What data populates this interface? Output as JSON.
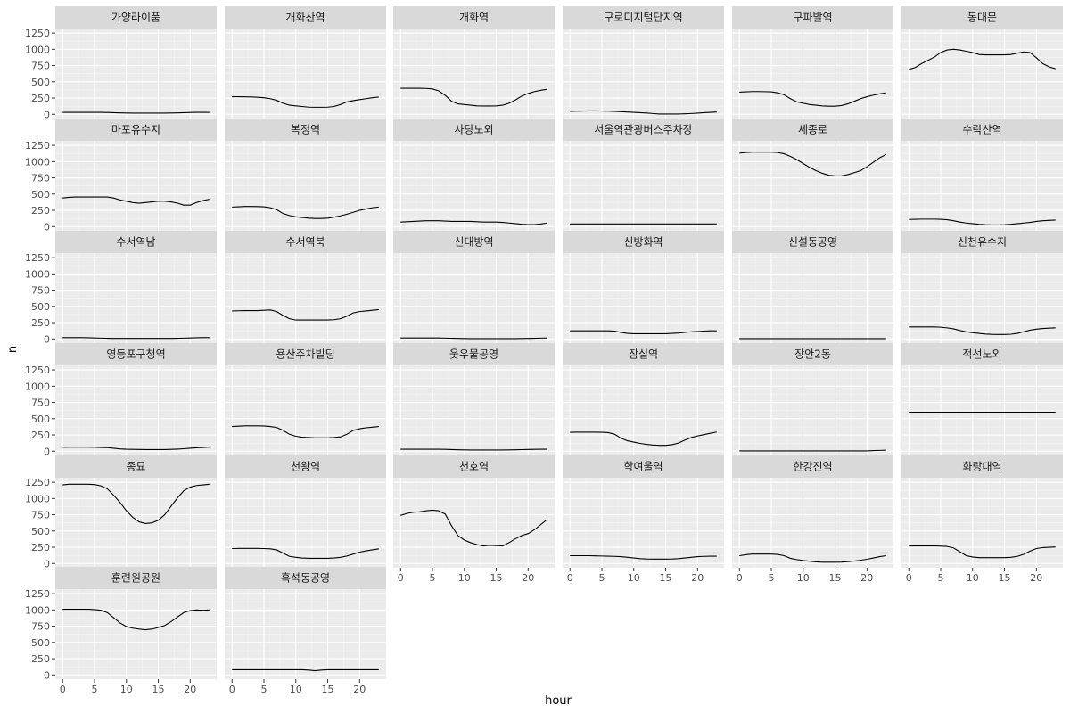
{
  "chart_data": {
    "type": "line",
    "layout": "facet_wrap",
    "ncol": 6,
    "xlabel": "hour",
    "ylabel": "n",
    "xlim": [
      -1.15,
      24.15
    ],
    "ylim": [
      -65,
      1320
    ],
    "xticks": [
      0,
      5,
      10,
      15,
      20
    ],
    "yticks": [
      0,
      250,
      500,
      750,
      1000,
      1250
    ],
    "x": [
      0,
      1,
      2,
      3,
      4,
      5,
      6,
      7,
      8,
      9,
      10,
      11,
      12,
      13,
      14,
      15,
      16,
      17,
      18,
      19,
      20,
      21,
      22,
      23
    ],
    "grid": true,
    "legend": "none",
    "colors": {
      "panel_bg": "#ebebeb",
      "strip_bg": "#d9d9d9",
      "grid_major": "#ffffff",
      "grid_minor": "#f5f5f5",
      "line": "#000000"
    },
    "series": [
      {
        "name": "가양라이품",
        "values": [
          30,
          30,
          30,
          30,
          30,
          30,
          30,
          28,
          25,
          22,
          20,
          18,
          18,
          18,
          18,
          18,
          18,
          20,
          22,
          25,
          28,
          30,
          30,
          30
        ]
      },
      {
        "name": "개화산역",
        "values": [
          270,
          270,
          268,
          266,
          262,
          255,
          240,
          215,
          170,
          140,
          130,
          120,
          110,
          108,
          108,
          110,
          120,
          150,
          190,
          210,
          225,
          240,
          255,
          265
        ]
      },
      {
        "name": "개화역",
        "values": [
          400,
          400,
          400,
          400,
          398,
          390,
          360,
          290,
          200,
          160,
          150,
          140,
          130,
          128,
          128,
          130,
          140,
          170,
          220,
          280,
          320,
          350,
          370,
          385
        ]
      },
      {
        "name": "구로디지털단지역",
        "values": [
          45,
          48,
          50,
          52,
          52,
          50,
          48,
          45,
          40,
          35,
          30,
          25,
          20,
          12,
          5,
          5,
          5,
          5,
          8,
          12,
          18,
          25,
          30,
          35
        ]
      },
      {
        "name": "구파발역",
        "values": [
          340,
          345,
          350,
          350,
          348,
          345,
          330,
          300,
          240,
          190,
          170,
          150,
          140,
          130,
          125,
          125,
          135,
          160,
          200,
          240,
          270,
          295,
          315,
          330
        ]
      },
      {
        "name": "동대문",
        "values": [
          690,
          720,
          780,
          830,
          880,
          950,
          990,
          1000,
          990,
          970,
          950,
          920,
          915,
          915,
          915,
          915,
          920,
          940,
          960,
          950,
          870,
          780,
          730,
          700
        ]
      },
      {
        "name": "마포유수지",
        "values": [
          440,
          450,
          455,
          455,
          455,
          455,
          455,
          455,
          440,
          410,
          390,
          370,
          360,
          370,
          380,
          390,
          390,
          380,
          360,
          330,
          330,
          370,
          400,
          420
        ]
      },
      {
        "name": "복정역",
        "values": [
          300,
          305,
          310,
          310,
          308,
          305,
          290,
          260,
          200,
          170,
          150,
          140,
          130,
          125,
          125,
          130,
          145,
          165,
          190,
          220,
          250,
          270,
          290,
          300
        ]
      },
      {
        "name": "사당노외",
        "values": [
          70,
          75,
          80,
          85,
          90,
          90,
          90,
          85,
          80,
          80,
          80,
          80,
          75,
          70,
          70,
          70,
          65,
          55,
          45,
          35,
          30,
          30,
          40,
          55
        ]
      },
      {
        "name": "서울역관광버스주차장",
        "values": [
          40,
          40,
          40,
          40,
          40,
          40,
          40,
          40,
          40,
          40,
          40,
          40,
          40,
          40,
          40,
          40,
          40,
          40,
          40,
          40,
          40,
          40,
          40,
          40
        ]
      },
      {
        "name": "세종로",
        "values": [
          1130,
          1140,
          1145,
          1145,
          1145,
          1145,
          1140,
          1120,
          1080,
          1030,
          970,
          910,
          860,
          820,
          790,
          780,
          780,
          800,
          830,
          860,
          920,
          990,
          1060,
          1110
        ]
      },
      {
        "name": "수락산역",
        "values": [
          110,
          112,
          115,
          115,
          115,
          112,
          105,
          90,
          70,
          55,
          45,
          35,
          28,
          25,
          25,
          28,
          35,
          45,
          55,
          65,
          80,
          90,
          95,
          100
        ]
      },
      {
        "name": "수서역남",
        "values": [
          20,
          20,
          20,
          20,
          18,
          15,
          12,
          10,
          8,
          8,
          8,
          8,
          8,
          8,
          8,
          8,
          8,
          8,
          10,
          12,
          15,
          18,
          20,
          20
        ]
      },
      {
        "name": "수서역북",
        "values": [
          430,
          432,
          435,
          435,
          435,
          440,
          445,
          420,
          360,
          310,
          290,
          290,
          290,
          290,
          290,
          290,
          295,
          310,
          350,
          400,
          420,
          430,
          440,
          450
        ]
      },
      {
        "name": "신대방역",
        "values": [
          15,
          15,
          15,
          15,
          15,
          15,
          15,
          12,
          10,
          8,
          6,
          5,
          5,
          5,
          5,
          5,
          5,
          5,
          5,
          6,
          8,
          10,
          12,
          15
        ]
      },
      {
        "name": "신방화역",
        "values": [
          125,
          125,
          125,
          125,
          125,
          125,
          125,
          120,
          100,
          85,
          80,
          80,
          80,
          80,
          80,
          80,
          85,
          90,
          100,
          110,
          115,
          120,
          125,
          125
        ]
      },
      {
        "name": "신설동공영",
        "values": [
          5,
          5,
          5,
          5,
          5,
          5,
          5,
          5,
          5,
          5,
          5,
          5,
          5,
          5,
          5,
          5,
          5,
          5,
          5,
          5,
          5,
          5,
          5,
          5
        ]
      },
      {
        "name": "신천유수지",
        "values": [
          185,
          185,
          185,
          185,
          185,
          180,
          170,
          155,
          130,
          110,
          95,
          85,
          75,
          70,
          68,
          68,
          72,
          85,
          110,
          135,
          150,
          160,
          165,
          170
        ]
      },
      {
        "name": "영등포구청역",
        "values": [
          60,
          62,
          62,
          62,
          62,
          60,
          58,
          55,
          45,
          35,
          30,
          28,
          26,
          25,
          25,
          25,
          25,
          28,
          32,
          38,
          45,
          52,
          58,
          62
        ]
      },
      {
        "name": "용산주차빌딩",
        "values": [
          380,
          385,
          390,
          390,
          390,
          388,
          380,
          365,
          320,
          260,
          230,
          215,
          210,
          205,
          205,
          205,
          210,
          220,
          260,
          320,
          345,
          360,
          370,
          380
        ]
      },
      {
        "name": "웃우물공영",
        "values": [
          30,
          30,
          30,
          30,
          30,
          30,
          30,
          28,
          25,
          22,
          20,
          18,
          18,
          18,
          18,
          18,
          18,
          20,
          22,
          24,
          26,
          28,
          30,
          30
        ]
      },
      {
        "name": "잠실역",
        "values": [
          290,
          292,
          292,
          292,
          292,
          290,
          285,
          260,
          200,
          160,
          140,
          120,
          105,
          95,
          90,
          90,
          100,
          125,
          170,
          210,
          235,
          255,
          275,
          295
        ]
      },
      {
        "name": "장안2동",
        "values": [
          5,
          5,
          5,
          5,
          5,
          5,
          5,
          5,
          5,
          5,
          5,
          5,
          5,
          5,
          5,
          5,
          5,
          5,
          5,
          5,
          5,
          10,
          12,
          15
        ]
      },
      {
        "name": "적선노외",
        "values": [
          600,
          600,
          600,
          600,
          600,
          600,
          600,
          600,
          600,
          600,
          600,
          600,
          600,
          600,
          600,
          600,
          600,
          600,
          600,
          600,
          600,
          600,
          600,
          600
        ]
      },
      {
        "name": "종묘",
        "values": [
          1210,
          1220,
          1220,
          1220,
          1220,
          1215,
          1195,
          1150,
          1050,
          940,
          810,
          710,
          640,
          615,
          625,
          665,
          750,
          880,
          1010,
          1120,
          1175,
          1200,
          1210,
          1220
        ]
      },
      {
        "name": "천왕역",
        "values": [
          230,
          232,
          232,
          232,
          232,
          230,
          225,
          210,
          160,
          110,
          95,
          85,
          80,
          80,
          80,
          80,
          85,
          95,
          115,
          145,
          175,
          195,
          210,
          225
        ]
      },
      {
        "name": "천호역",
        "values": [
          740,
          770,
          790,
          795,
          810,
          820,
          810,
          760,
          580,
          430,
          360,
          320,
          290,
          270,
          280,
          275,
          270,
          320,
          380,
          430,
          460,
          520,
          600,
          680
        ]
      },
      {
        "name": "학여울역",
        "values": [
          120,
          120,
          120,
          120,
          118,
          115,
          112,
          110,
          105,
          95,
          85,
          75,
          70,
          68,
          68,
          68,
          70,
          75,
          85,
          95,
          105,
          110,
          112,
          112
        ]
      },
      {
        "name": "한강진역",
        "values": [
          120,
          135,
          145,
          145,
          145,
          145,
          140,
          120,
          80,
          60,
          45,
          35,
          25,
          20,
          20,
          20,
          22,
          28,
          38,
          50,
          65,
          85,
          105,
          120
        ]
      },
      {
        "name": "화랑대역",
        "values": [
          270,
          270,
          270,
          270,
          270,
          268,
          262,
          240,
          180,
          120,
          100,
          90,
          90,
          90,
          90,
          90,
          95,
          110,
          140,
          190,
          230,
          245,
          250,
          255
        ]
      },
      {
        "name": "훈련원공원",
        "values": [
          1010,
          1010,
          1010,
          1010,
          1010,
          1005,
          995,
          960,
          880,
          800,
          745,
          720,
          705,
          695,
          705,
          730,
          760,
          820,
          890,
          960,
          990,
          1000,
          995,
          1000
        ]
      },
      {
        "name": "흑석동공영",
        "values": [
          80,
          80,
          80,
          80,
          80,
          80,
          80,
          80,
          80,
          80,
          80,
          80,
          75,
          65,
          75,
          80,
          80,
          80,
          80,
          80,
          80,
          80,
          80,
          80
        ]
      }
    ]
  }
}
